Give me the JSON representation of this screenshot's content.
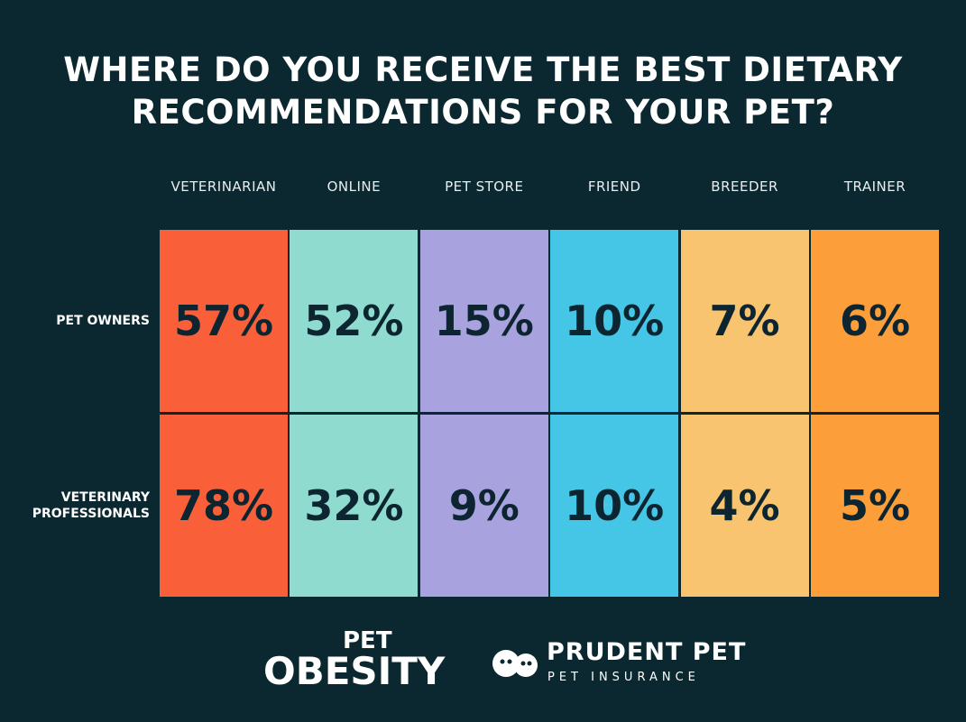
{
  "header": {
    "title": [
      "WHERE DO YOU RECEIVE THE BEST DIETARY",
      "RECOMMENDATIONS FOR YOUR PET?"
    ]
  },
  "table": {
    "columns": [
      {
        "name": "VETERINARIAN",
        "color": "#f9603a"
      },
      {
        "name": "ONLINE",
        "color": "#8fdbcf"
      },
      {
        "name": "PET STORE",
        "color": "#a8a2de"
      },
      {
        "name": "FRIEND",
        "color": "#45c6e6"
      },
      {
        "name": "BREEDER",
        "color": "#f8c46f"
      },
      {
        "name": "TRAINER",
        "color": "#fc9f3a"
      }
    ],
    "rows": [
      {
        "label": "PET OWNERS",
        "cells": [
          "57%",
          "52%",
          "15%",
          "10%",
          "7%",
          "6%"
        ]
      },
      {
        "label": "VETERINARY PROFESSIONALS",
        "cells": [
          "78%",
          "32%",
          "9%",
          "10%",
          "4%",
          "5%"
        ]
      }
    ]
  },
  "footer": {
    "logo_1": [
      "PET",
      "OBESITY"
    ],
    "logo_2": [
      "PRUDENT PET",
      "PET INSURANCE"
    ]
  }
}
